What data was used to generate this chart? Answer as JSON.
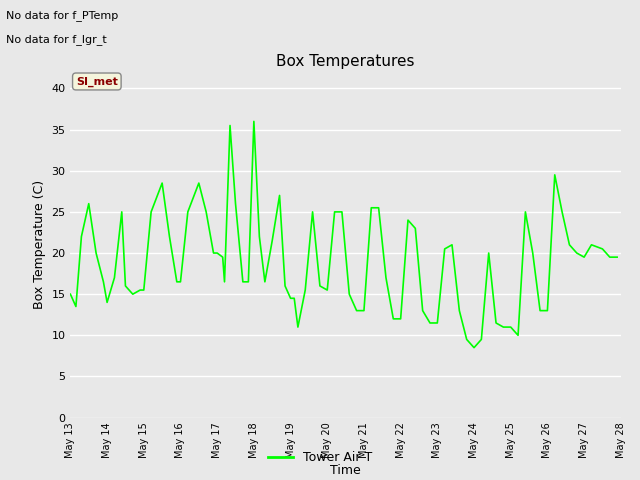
{
  "title": "Box Temperatures",
  "xlabel": "Time",
  "ylabel": "Box Temperature (C)",
  "ylim": [
    0,
    42
  ],
  "yticks": [
    0,
    5,
    10,
    15,
    20,
    25,
    30,
    35,
    40
  ],
  "line_color": "#00FF00",
  "line_label": "Tower Air T",
  "bg_color": "#E8E8E8",
  "no_data_text1": "No data for f_PTemp",
  "no_data_text2": "No data for f_lgr_t",
  "si_met_label": "SI_met",
  "xlim": [
    13,
    28
  ],
  "x_days": [
    13,
    14,
    15,
    16,
    17,
    18,
    19,
    20,
    21,
    22,
    23,
    24,
    25,
    26,
    27,
    28
  ],
  "x_labels": [
    "May 13",
    "May 14",
    "May 15",
    "May 16",
    "May 17",
    "May 18",
    "May 19",
    "May 20",
    "May 21",
    "May 22",
    "May 23",
    "May 24",
    "May 25",
    "May 26",
    "May 27",
    "May 28"
  ],
  "time_values": [
    13.0,
    13.15,
    13.3,
    13.5,
    13.7,
    13.9,
    14.0,
    14.2,
    14.4,
    14.5,
    14.7,
    14.9,
    15.0,
    15.2,
    15.5,
    15.7,
    15.9,
    16.0,
    16.2,
    16.5,
    16.7,
    16.9,
    17.0,
    17.15,
    17.2,
    17.35,
    17.5,
    17.7,
    17.85,
    18.0,
    18.15,
    18.3,
    18.5,
    18.7,
    18.85,
    19.0,
    19.1,
    19.2,
    19.4,
    19.6,
    19.8,
    20.0,
    20.2,
    20.4,
    20.6,
    20.8,
    21.0,
    21.2,
    21.4,
    21.6,
    21.8,
    22.0,
    22.2,
    22.4,
    22.6,
    22.8,
    23.0,
    23.2,
    23.4,
    23.6,
    23.8,
    24.0,
    24.2,
    24.4,
    24.6,
    24.8,
    25.0,
    25.2,
    25.4,
    25.6,
    25.8,
    26.0,
    26.2,
    26.4,
    26.6,
    26.8,
    27.0,
    27.2,
    27.5,
    27.7,
    27.9
  ],
  "temp_values": [
    15.0,
    13.5,
    22.0,
    26.0,
    20.0,
    16.5,
    14.0,
    17.0,
    25.0,
    16.0,
    15.0,
    15.5,
    15.5,
    25.0,
    28.5,
    22.0,
    16.5,
    16.5,
    25.0,
    28.5,
    25.0,
    20.0,
    20.0,
    19.5,
    16.5,
    35.5,
    26.0,
    16.5,
    16.5,
    36.0,
    22.0,
    16.5,
    21.5,
    27.0,
    16.0,
    14.5,
    14.5,
    11.0,
    15.5,
    25.0,
    16.0,
    15.5,
    25.0,
    25.0,
    15.0,
    13.0,
    13.0,
    25.5,
    25.5,
    17.0,
    12.0,
    12.0,
    24.0,
    23.0,
    13.0,
    11.5,
    11.5,
    20.5,
    21.0,
    13.0,
    9.5,
    8.5,
    9.5,
    20.0,
    11.5,
    11.0,
    11.0,
    10.0,
    25.0,
    20.0,
    13.0,
    13.0,
    29.5,
    25.0,
    21.0,
    20.0,
    19.5,
    21.0,
    20.5,
    19.5,
    19.5
  ]
}
